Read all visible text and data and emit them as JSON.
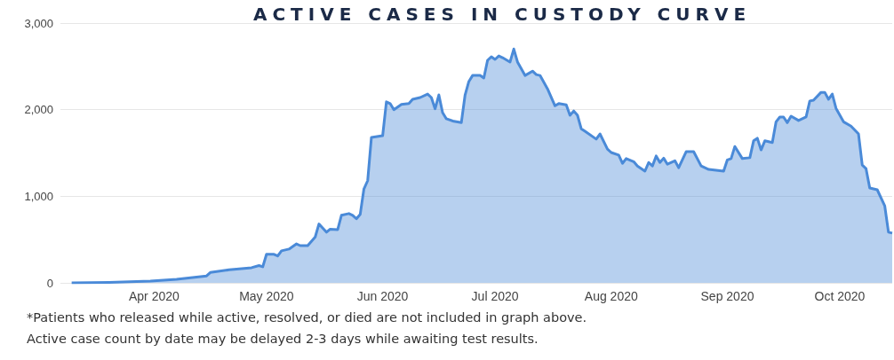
{
  "chart_data": {
    "type": "area",
    "title": "ACTIVE CASES IN CUSTODY CURVE",
    "annotations": [
      "*Patients who released while active, resolved, or died are not included in graph above.",
      "Active case count by date may be delayed 2-3 days while awaiting test results."
    ],
    "x": [
      "2020-03-10",
      "2020-03-20",
      "2020-03-31",
      "2020-04-07",
      "2020-04-15",
      "2020-04-16",
      "2020-04-21",
      "2020-04-27",
      "2020-04-29",
      "2020-04-30",
      "2020-05-01",
      "2020-05-03",
      "2020-05-04",
      "2020-05-05",
      "2020-05-07",
      "2020-05-09",
      "2020-05-10",
      "2020-05-12",
      "2020-05-14",
      "2020-05-15",
      "2020-05-17",
      "2020-05-18",
      "2020-05-20",
      "2020-05-21",
      "2020-05-23",
      "2020-05-24",
      "2020-05-25",
      "2020-05-26",
      "2020-05-27",
      "2020-05-28",
      "2020-05-29",
      "2020-06-01",
      "2020-06-02",
      "2020-06-03",
      "2020-06-04",
      "2020-06-06",
      "2020-06-08",
      "2020-06-09",
      "2020-06-11",
      "2020-06-13",
      "2020-06-14",
      "2020-06-15",
      "2020-06-16",
      "2020-06-17",
      "2020-06-18",
      "2020-06-20",
      "2020-06-22",
      "2020-06-23",
      "2020-06-24",
      "2020-06-25",
      "2020-06-27",
      "2020-06-28",
      "2020-06-29",
      "2020-06-30",
      "2020-07-01",
      "2020-07-02",
      "2020-07-03",
      "2020-07-05",
      "2020-07-06",
      "2020-07-07",
      "2020-07-09",
      "2020-07-11",
      "2020-07-12",
      "2020-07-13",
      "2020-07-15",
      "2020-07-17",
      "2020-07-18",
      "2020-07-20",
      "2020-07-21",
      "2020-07-22",
      "2020-07-23",
      "2020-07-24",
      "2020-07-25",
      "2020-07-28",
      "2020-07-29",
      "2020-07-31",
      "2020-08-01",
      "2020-08-03",
      "2020-08-04",
      "2020-08-05",
      "2020-08-07",
      "2020-08-08",
      "2020-08-10",
      "2020-08-11",
      "2020-08-12",
      "2020-08-13",
      "2020-08-14",
      "2020-08-15",
      "2020-08-16",
      "2020-08-18",
      "2020-08-19",
      "2020-08-21",
      "2020-08-23",
      "2020-08-25",
      "2020-08-27",
      "2020-08-31",
      "2020-09-01",
      "2020-09-02",
      "2020-09-03",
      "2020-09-05",
      "2020-09-07",
      "2020-09-08",
      "2020-09-09",
      "2020-09-10",
      "2020-09-11",
      "2020-09-13",
      "2020-09-14",
      "2020-09-15",
      "2020-09-16",
      "2020-09-17",
      "2020-09-18",
      "2020-09-20",
      "2020-09-22",
      "2020-09-23",
      "2020-09-24",
      "2020-09-26",
      "2020-09-27",
      "2020-09-28",
      "2020-09-29",
      "2020-09-30",
      "2020-10-02",
      "2020-10-04",
      "2020-10-06",
      "2020-10-07",
      "2020-10-08",
      "2020-10-09",
      "2020-10-11",
      "2020-10-13",
      "2020-10-14",
      "2020-10-15"
    ],
    "values": [
      0,
      5,
      20,
      40,
      80,
      120,
      150,
      175,
      200,
      185,
      330,
      330,
      310,
      370,
      390,
      450,
      430,
      430,
      530,
      680,
      585,
      620,
      615,
      780,
      800,
      780,
      740,
      790,
      1085,
      1180,
      1680,
      1700,
      2090,
      2070,
      2000,
      2060,
      2070,
      2120,
      2140,
      2180,
      2140,
      2010,
      2170,
      1965,
      1895,
      1865,
      1850,
      2170,
      2325,
      2395,
      2395,
      2365,
      2570,
      2610,
      2580,
      2620,
      2600,
      2550,
      2700,
      2550,
      2395,
      2445,
      2405,
      2395,
      2240,
      2045,
      2070,
      2055,
      1935,
      1985,
      1935,
      1780,
      1750,
      1660,
      1720,
      1545,
      1505,
      1475,
      1380,
      1435,
      1400,
      1350,
      1290,
      1390,
      1350,
      1465,
      1390,
      1440,
      1370,
      1410,
      1330,
      1515,
      1515,
      1350,
      1310,
      1290,
      1420,
      1435,
      1575,
      1435,
      1445,
      1640,
      1670,
      1535,
      1640,
      1620,
      1860,
      1915,
      1915,
      1850,
      1925,
      1875,
      1915,
      2100,
      2110,
      2200,
      2200,
      2120,
      2180,
      2015,
      1860,
      1810,
      1720,
      1360,
      1320,
      1095,
      1075,
      890,
      585,
      575
    ],
    "color": "#4a8ad8",
    "xlim": [
      "2020-03-07",
      "2020-10-15"
    ],
    "xticks": [
      {
        "value": "2020-04-01",
        "label": "Apr 2020"
      },
      {
        "value": "2020-05-01",
        "label": "May 2020"
      },
      {
        "value": "2020-06-01",
        "label": "Jun 2020"
      },
      {
        "value": "2020-07-01",
        "label": "Jul 2020"
      },
      {
        "value": "2020-08-01",
        "label": "Aug 2020"
      },
      {
        "value": "2020-09-01",
        "label": "Sep 2020"
      },
      {
        "value": "2020-10-01",
        "label": "Oct 2020"
      }
    ],
    "ylim": [
      0,
      3000
    ],
    "yticks": [
      0,
      {
        "value": 1000,
        "label": "1,000"
      },
      {
        "value": 2000,
        "label": "2,000"
      },
      {
        "value": 3000,
        "label": "3,000"
      }
    ],
    "grid": "y",
    "marker": "none",
    "line_style": "solid"
  }
}
